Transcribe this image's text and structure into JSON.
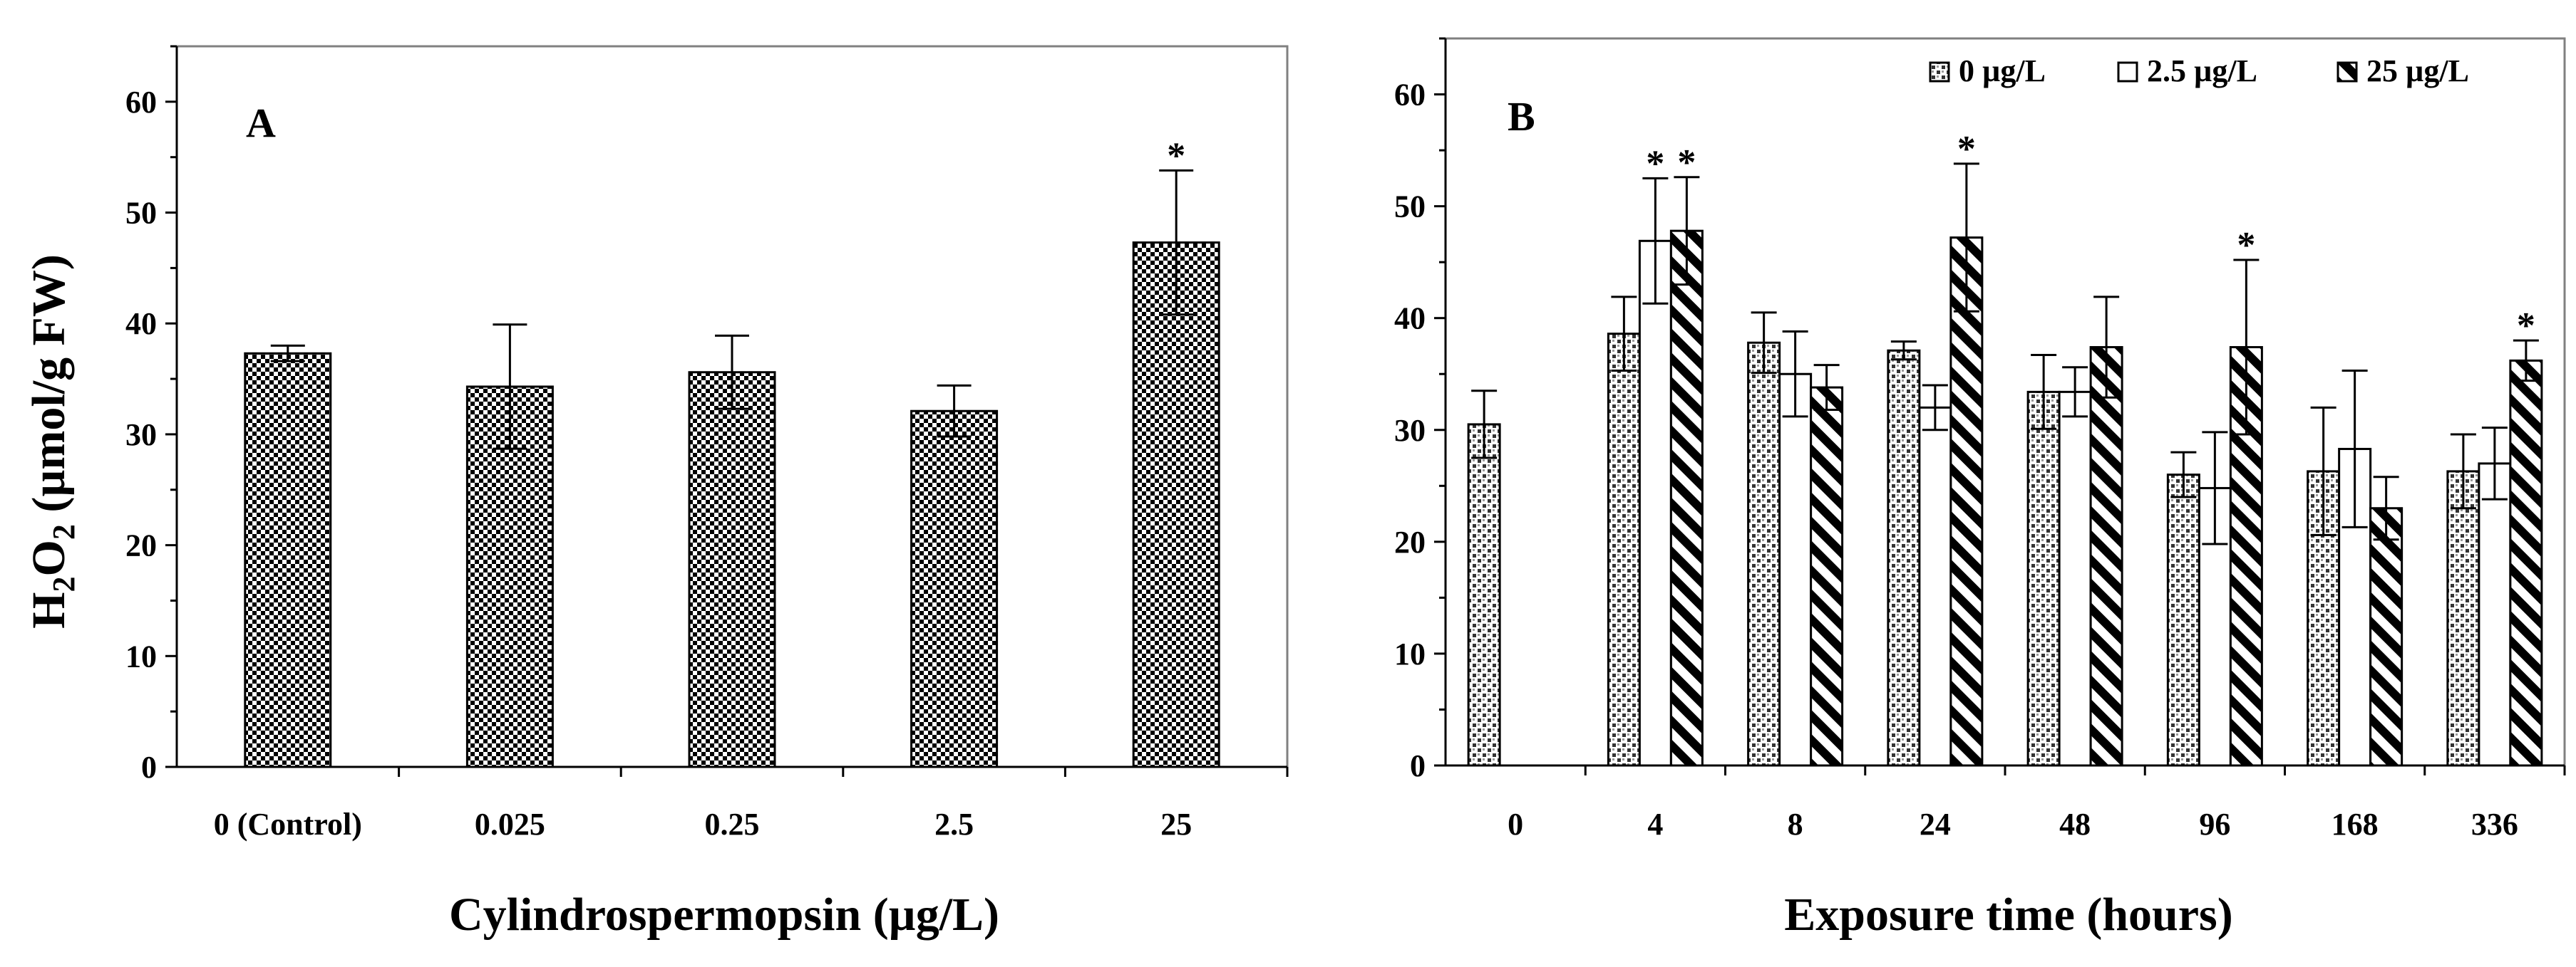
{
  "chart_data": [
    {
      "type": "bar",
      "panel_label": "A",
      "xlabel": "Cylindrospermopsin (µg/L)",
      "ylabel": {
        "base": "H",
        "sub1": "2",
        "mid": "O",
        "sub2": "2",
        "rest": " (µmol/g FW)"
      },
      "ylim": [
        0,
        65
      ],
      "yticks": [
        "0",
        "10",
        "20",
        "30",
        "40",
        "50",
        "60"
      ],
      "categories": [
        "0 (Control)",
        "0.025",
        "0.25",
        "2.5",
        "25"
      ],
      "series": [
        {
          "name": "H2O2",
          "pattern": "checker",
          "values": [
            37.3,
            34.3,
            35.6,
            32.1,
            47.3
          ],
          "errors": [
            0.7,
            5.6,
            3.3,
            2.3,
            6.5
          ],
          "significant": [
            false,
            false,
            false,
            false,
            true
          ]
        }
      ],
      "significance_marker": "*",
      "grid": false
    },
    {
      "type": "bar",
      "panel_label": "B",
      "xlabel": "Exposure time (hours)",
      "ylim": [
        0,
        65
      ],
      "yticks": [
        "0",
        "10",
        "20",
        "30",
        "40",
        "50",
        "60"
      ],
      "categories": [
        "0",
        "4",
        "8",
        "24",
        "48",
        "96",
        "168",
        "336"
      ],
      "legend_position": "top",
      "series": [
        {
          "name": "0 µg/L",
          "pattern": "dots",
          "values": [
            30.5,
            38.6,
            37.8,
            37.1,
            33.4,
            26.0,
            26.3,
            26.3
          ],
          "errors": [
            3.0,
            3.3,
            2.7,
            0.8,
            3.3,
            2.0,
            5.7,
            3.3
          ],
          "significant": [
            false,
            false,
            false,
            false,
            false,
            false,
            false,
            false
          ]
        },
        {
          "name": "2.5 µg/L",
          "pattern": "plain",
          "values": [
            null,
            46.9,
            35.0,
            32.0,
            33.4,
            24.8,
            28.3,
            27.0
          ],
          "errors": [
            null,
            5.6,
            3.8,
            2.0,
            2.2,
            5.0,
            7.0,
            3.2
          ],
          "significant": [
            false,
            true,
            false,
            false,
            false,
            false,
            false,
            false
          ]
        },
        {
          "name": "25 µg/L",
          "pattern": "diagonal",
          "values": [
            null,
            47.8,
            33.8,
            47.2,
            37.4,
            37.4,
            23.0,
            36.2
          ],
          "errors": [
            null,
            4.8,
            2.0,
            6.6,
            4.5,
            7.8,
            2.8,
            1.8
          ],
          "significant": [
            false,
            true,
            false,
            true,
            false,
            true,
            false,
            true
          ]
        }
      ],
      "significance_marker": "*",
      "grid": false
    }
  ]
}
